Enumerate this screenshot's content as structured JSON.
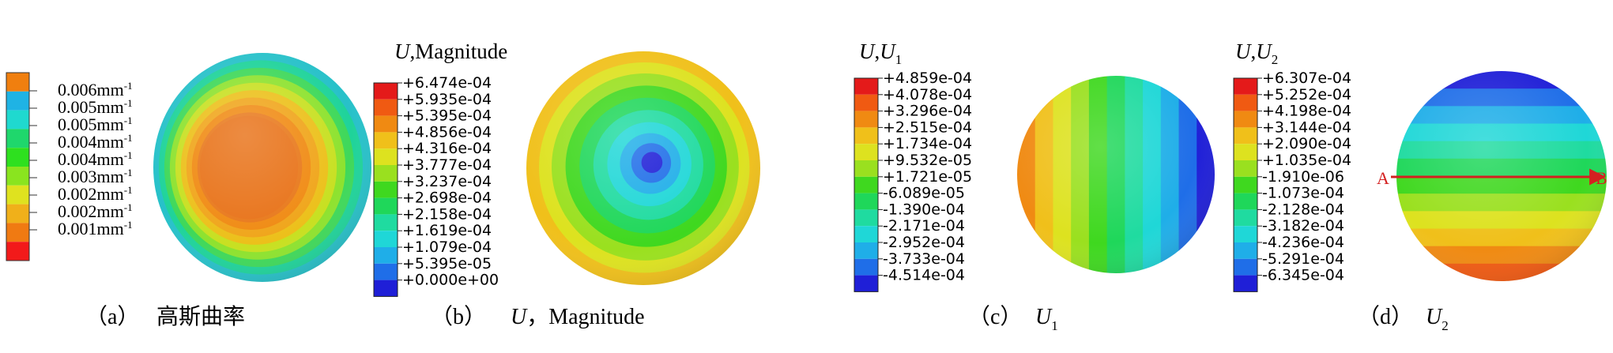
{
  "panels": [
    {
      "id": "a",
      "caption_label": "（a）",
      "caption_text": "高斯曲率",
      "legend_labels": [
        "0.006mm",
        "0.005mm",
        "0.005mm",
        "0.004mm",
        "0.004mm",
        "0.003mm",
        "0.002mm",
        "0.002mm",
        "0.001mm"
      ],
      "legend_unit_sup": "-1",
      "legend_colors": [
        "#f07f0f",
        "#1fb3e4",
        "#1fd9cf",
        "#1fd76c",
        "#2ee01f",
        "#8ae41f",
        "#dfe21f",
        "#f0b01a",
        "#f07a12",
        "#f21a1a"
      ]
    },
    {
      "id": "b",
      "title_var": "U",
      "title_rest": ",Magnitude",
      "caption_label": "（b）",
      "caption_var": "U",
      "caption_rest": "，Magnitude",
      "legend_labels": [
        "+6.474e-04",
        "+5.935e-04",
        "+5.395e-04",
        "+4.856e-04",
        "+4.316e-04",
        "+3.777e-04",
        "+3.237e-04",
        "+2.698e-04",
        "+2.158e-04",
        "+1.619e-04",
        "+1.079e-04",
        "+5.395e-05",
        "+0.000e+00"
      ]
    },
    {
      "id": "c",
      "title_var": "U",
      "title_sub": "1",
      "caption_label": "（c）",
      "caption_var": "U",
      "caption_sub": "1",
      "legend_labels": [
        "+4.859e-04",
        "+4.078e-04",
        "+3.296e-04",
        "+2.515e-04",
        "+1.734e-04",
        "+9.532e-05",
        "+1.721e-05",
        "-6.089e-05",
        "-1.390e-04",
        "-2.171e-04",
        "-2.952e-04",
        "-3.733e-04",
        "-4.514e-04"
      ]
    },
    {
      "id": "d",
      "title_var": "U",
      "title_sub": "2",
      "caption_label": "（d）",
      "caption_var": "U",
      "caption_sub": "2",
      "legend_labels": [
        "+6.307e-04",
        "+5.252e-04",
        "+4.198e-04",
        "+3.144e-04",
        "+2.090e-04",
        "+1.035e-04",
        "-1.910e-06",
        "-1.073e-04",
        "-2.128e-04",
        "-3.182e-04",
        "-4.236e-04",
        "-5.291e-04",
        "-6.345e-04"
      ],
      "path_label_start": "A",
      "path_label_end": "B"
    }
  ],
  "contour_colors": [
    "#e41a1a",
    "#f05a12",
    "#f08a12",
    "#f0c01a",
    "#dde21f",
    "#9ae01f",
    "#3fd81f",
    "#1fd75a",
    "#1fdba0",
    "#1fd7d7",
    "#1faee8",
    "#1f6ee8",
    "#1f1fd7"
  ],
  "colors": {
    "path_line": "#d42020"
  }
}
